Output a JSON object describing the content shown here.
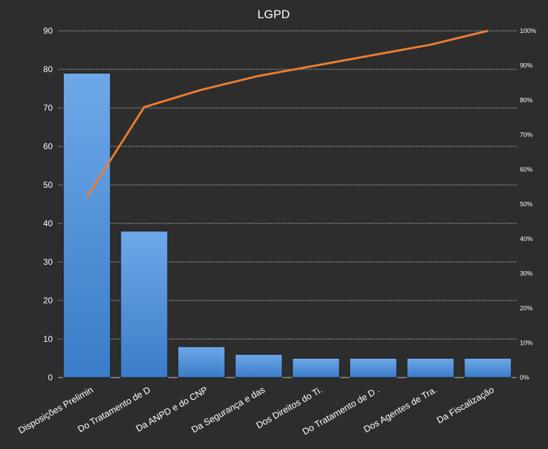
{
  "chart_data": {
    "type": "bar",
    "title": "LGPD",
    "categories": [
      "Disposições Prelimin",
      "Do Tratamento de D",
      "Da ANPD e do CNP",
      "Da Segurança e das",
      "Dos Direitos do Ti.",
      "Do Tratamento de D .",
      "Dos Agentes de Tra.",
      "Da Fiscalização"
    ],
    "series": [
      {
        "values": [
          79,
          38,
          8,
          6,
          5,
          5,
          5,
          5
        ],
        "kind": "bar",
        "axis": "left"
      },
      {
        "values": [
          52,
          78,
          83,
          87,
          90,
          93,
          96,
          100
        ],
        "kind": "line",
        "axis": "right",
        "unit": "%"
      }
    ],
    "ylim": [
      0,
      90
    ],
    "yticks": [
      0,
      10,
      20,
      30,
      40,
      50,
      60,
      70,
      80,
      90
    ],
    "y2lim": [
      0,
      100
    ],
    "y2ticks": [
      "0%",
      "10%",
      "20%",
      "30%",
      "40%",
      "50%",
      "60%",
      "70%",
      "80%",
      "90%",
      "100%"
    ],
    "grid": true,
    "legend": "none",
    "colors": {
      "bar": "#4f8fd6",
      "bar_dark": "#3a78c0",
      "line": "#ed7d31",
      "grid": "#bfbfbf",
      "background": "#2d2d2d",
      "text": "#ffffff"
    }
  }
}
